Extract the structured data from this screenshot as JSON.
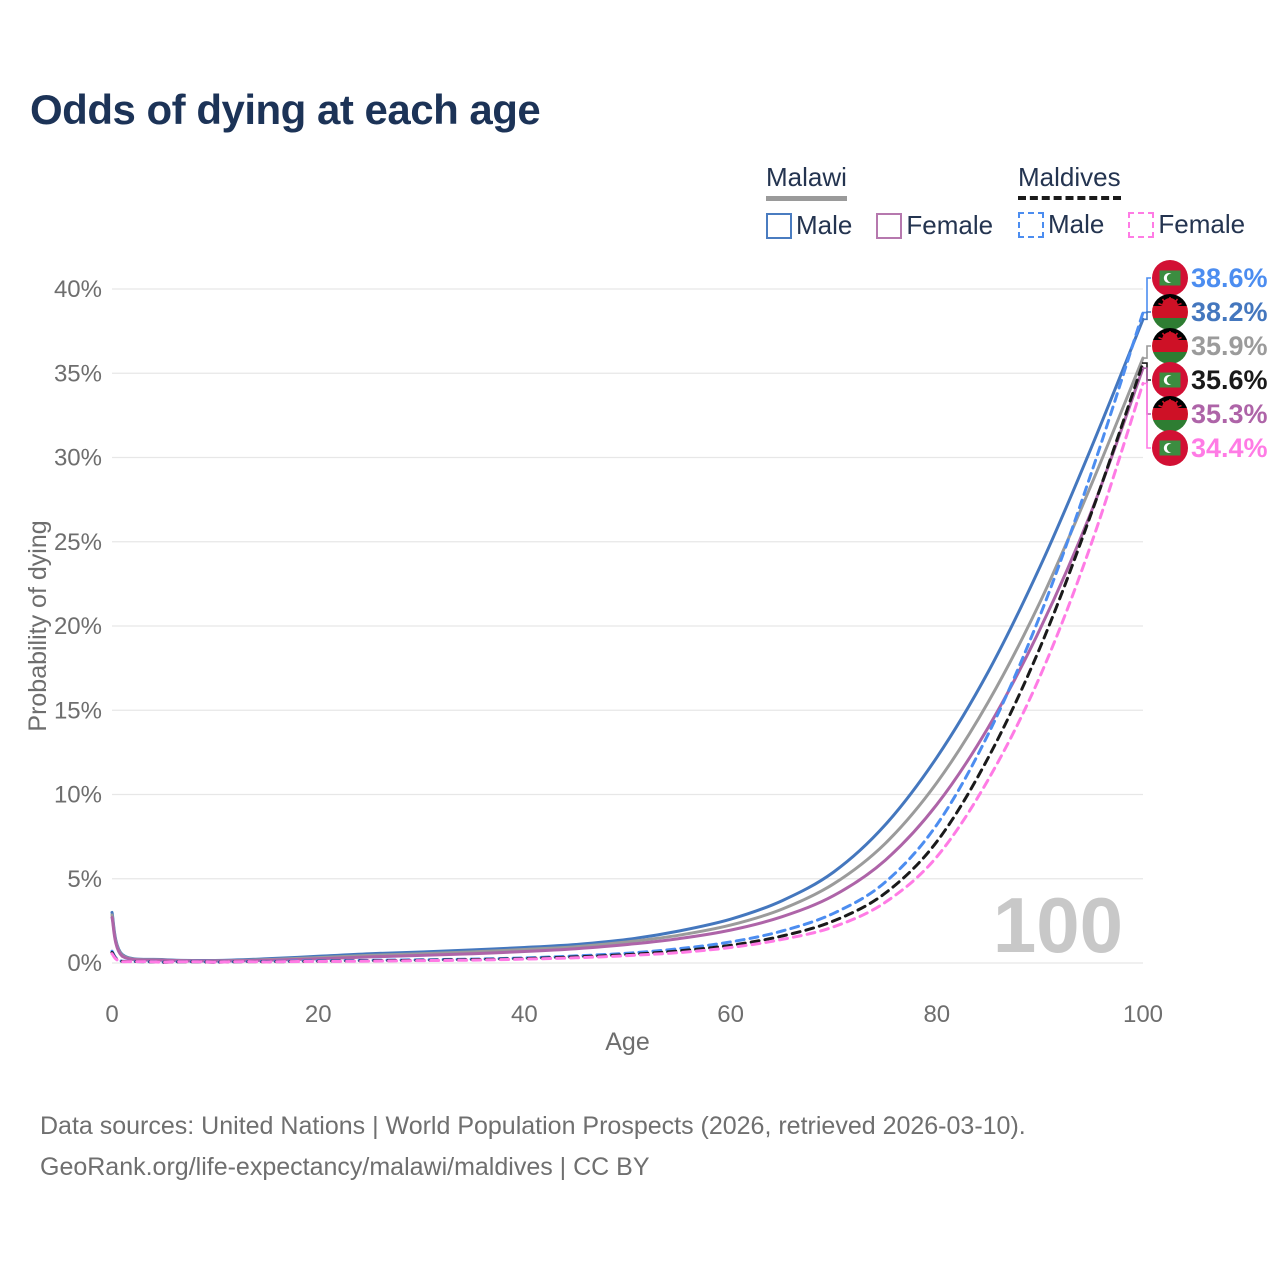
{
  "title": {
    "text": "Odds of dying at each age",
    "color": "#1C3357"
  },
  "legend": {
    "text_color": "#243450",
    "groups": [
      {
        "name": "Malawi",
        "line_style": "solid",
        "line_color": "#9A9A9A",
        "items": [
          {
            "label": "Male",
            "color": "#4A7CC0",
            "style": "solid"
          },
          {
            "label": "Female",
            "color": "#B678AE",
            "style": "solid"
          }
        ]
      },
      {
        "name": "Maldives",
        "line_style": "dashed",
        "line_color": "#1A1A1A",
        "items": [
          {
            "label": "Male",
            "color": "#4C8DF0",
            "style": "dashed"
          },
          {
            "label": "Female",
            "color": "#FF7BE5",
            "style": "dashed"
          }
        ]
      }
    ]
  },
  "watermark": {
    "text": "100",
    "color": "#C8C8C8"
  },
  "footer": {
    "color": "#6F6F6F",
    "lines": [
      "Data sources: United Nations | World Population Prospects (2026, retrieved 2026-03-10).",
      "GeoRank.org/life-expectancy/malawi/maldives | CC BY"
    ]
  },
  "chart_data": {
    "type": "line",
    "title": "Odds of dying at each age",
    "xlabel": "Age",
    "ylabel": "Probability of dying",
    "xlim": [
      0,
      100
    ],
    "ylim": [
      0,
      40
    ],
    "x_ticks": [
      0,
      20,
      40,
      60,
      80,
      100
    ],
    "y_ticks": [
      "0%",
      "5%",
      "10%",
      "15%",
      "20%",
      "25%",
      "30%",
      "35%",
      "40%"
    ],
    "grid": "horizontal",
    "legend_position": "top-right",
    "axis_color": "#6E6E6E",
    "grid_color": "#E7E7E7",
    "x": [
      0,
      1,
      5,
      10,
      15,
      20,
      25,
      30,
      35,
      40,
      45,
      50,
      55,
      60,
      65,
      70,
      75,
      80,
      85,
      90,
      95,
      100
    ],
    "series": [
      {
        "id": "malawi-male",
        "name": "Malawi Male",
        "country": "Malawi",
        "sex": "Male",
        "dash": false,
        "color": "#4477BE",
        "flag": "malawi",
        "end_label": "38.2%",
        "values": [
          3.0,
          0.5,
          0.2,
          0.15,
          0.25,
          0.4,
          0.55,
          0.65,
          0.78,
          0.92,
          1.1,
          1.4,
          1.9,
          2.6,
          3.7,
          5.4,
          8.2,
          12.2,
          17.3,
          23.5,
          30.6,
          38.2
        ]
      },
      {
        "id": "malawi-total",
        "name": "Malawi Both sexes",
        "country": "Malawi",
        "sex": "Both",
        "dash": false,
        "color": "#9B9B9B",
        "flag": "malawi",
        "end_label": "35.9%",
        "values": [
          2.85,
          0.45,
          0.18,
          0.13,
          0.2,
          0.32,
          0.45,
          0.55,
          0.66,
          0.8,
          0.97,
          1.25,
          1.65,
          2.25,
          3.2,
          4.7,
          7.1,
          10.7,
          15.5,
          21.4,
          28.4,
          35.9
        ]
      },
      {
        "id": "malawi-female",
        "name": "Malawi Female",
        "country": "Malawi",
        "sex": "Female",
        "dash": false,
        "color": "#AE64A8",
        "flag": "malawi",
        "end_label": "35.3%",
        "values": [
          2.7,
          0.4,
          0.16,
          0.12,
          0.16,
          0.25,
          0.36,
          0.45,
          0.55,
          0.68,
          0.85,
          1.1,
          1.45,
          1.95,
          2.75,
          4.0,
          6.1,
          9.4,
          14.0,
          19.8,
          26.8,
          35.3
        ]
      },
      {
        "id": "maldives-male",
        "name": "Maldives Male",
        "country": "Maldives",
        "sex": "Male",
        "dash": true,
        "color": "#4C8DF0",
        "flag": "maldives",
        "end_label": "38.6%",
        "values": [
          0.7,
          0.1,
          0.05,
          0.05,
          0.09,
          0.13,
          0.16,
          0.19,
          0.23,
          0.3,
          0.42,
          0.58,
          0.85,
          1.25,
          1.9,
          2.95,
          4.8,
          8.2,
          13.6,
          20.6,
          29.1,
          38.6
        ]
      },
      {
        "id": "maldives-total",
        "name": "Maldives Both sexes",
        "country": "Maldives",
        "sex": "Both",
        "dash": true,
        "color": "#1A1A1A",
        "flag": "maldives",
        "end_label": "35.6%",
        "values": [
          0.62,
          0.09,
          0.04,
          0.04,
          0.07,
          0.1,
          0.13,
          0.16,
          0.2,
          0.26,
          0.36,
          0.5,
          0.72,
          1.05,
          1.6,
          2.5,
          4.15,
          7.2,
          12.2,
          18.7,
          26.7,
          35.6
        ]
      },
      {
        "id": "maldives-female",
        "name": "Maldives Female",
        "country": "Maldives",
        "sex": "Female",
        "dash": true,
        "color": "#FF7BE5",
        "flag": "maldives",
        "end_label": "34.4%",
        "values": [
          0.55,
          0.08,
          0.04,
          0.04,
          0.06,
          0.09,
          0.11,
          0.14,
          0.17,
          0.23,
          0.31,
          0.44,
          0.62,
          0.92,
          1.4,
          2.15,
          3.6,
          6.3,
          10.9,
          17.0,
          24.9,
          34.4
        ]
      }
    ]
  }
}
